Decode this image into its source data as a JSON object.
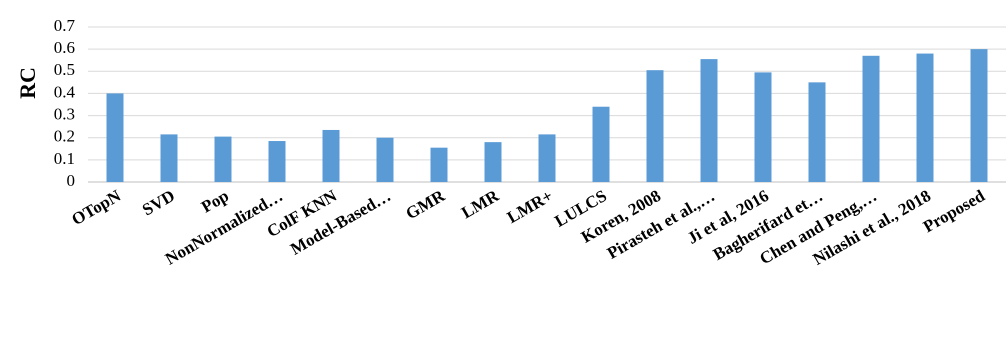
{
  "chart_data": {
    "type": "bar",
    "ylabel": "RC",
    "xlabel": "",
    "ylim": [
      0,
      0.7
    ],
    "yticks": [
      "0",
      "0.1",
      "0.2",
      "0.3",
      "0.4",
      "0.5",
      "0.6",
      "0.7"
    ],
    "grid": true,
    "bar_color": "#5B9BD5",
    "categories": [
      "OTopN",
      "SVD",
      "Pop",
      "NonNormalized…",
      "ColF KNN",
      "Model-Based…",
      "GMR",
      "LMR",
      "LMR+",
      "LULCS",
      "Koren, 2008",
      "Pirasteh et al.,…",
      "Ji et al, 2016",
      "Bagherifard et…",
      "Chen and Peng,…",
      "Nilashi et al., 2018",
      "Proposed"
    ],
    "values": [
      0.4,
      0.215,
      0.205,
      0.185,
      0.235,
      0.2,
      0.155,
      0.18,
      0.215,
      0.34,
      0.505,
      0.555,
      0.495,
      0.45,
      0.57,
      0.58,
      0.6
    ]
  }
}
